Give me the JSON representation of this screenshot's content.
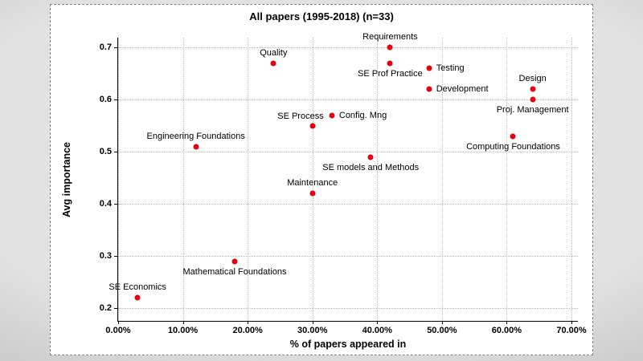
{
  "chart_data": {
    "type": "scatter",
    "title": "All papers (1995-2018) (n=33)",
    "xlabel": "% of papers appeared in",
    "ylabel": "Avg importance",
    "xlim": [
      0,
      0.7
    ],
    "ylim": [
      0.2,
      0.7
    ],
    "x_ticks": [
      0,
      0.1,
      0.2,
      0.3,
      0.4,
      0.5,
      0.6,
      0.7
    ],
    "x_tick_labels": [
      "0.00%",
      "10.00%",
      "20.00%",
      "30.00%",
      "40.00%",
      "50.00%",
      "60.00%",
      "70.00%"
    ],
    "y_ticks": [
      0.2,
      0.3,
      0.4,
      0.5,
      0.6,
      0.7
    ],
    "y_tick_labels": [
      "0.2",
      "0.3",
      "0.4",
      "0.5",
      "0.6",
      "0.7"
    ],
    "grid": "dotted",
    "legend": "none",
    "marker_color": "#e8000d",
    "points": [
      {
        "label": "SE Economics",
        "x": 0.03,
        "y": 0.22,
        "label_pos": "above"
      },
      {
        "label": "Mathematical Foundations",
        "x": 0.18,
        "y": 0.29,
        "label_pos": "below"
      },
      {
        "label": "Engineering Foundations",
        "x": 0.12,
        "y": 0.51,
        "label_pos": "above"
      },
      {
        "label": "Maintenance",
        "x": 0.3,
        "y": 0.42,
        "label_pos": "above"
      },
      {
        "label": "SE Process",
        "x": 0.3,
        "y": 0.55,
        "label_pos": "above-left"
      },
      {
        "label": "Config. Mng",
        "x": 0.33,
        "y": 0.57,
        "label_pos": "right"
      },
      {
        "label": "Quality",
        "x": 0.24,
        "y": 0.67,
        "label_pos": "above"
      },
      {
        "label": "SE models and Methods",
        "x": 0.39,
        "y": 0.49,
        "label_pos": "below"
      },
      {
        "label": "SE Prof Practice",
        "x": 0.42,
        "y": 0.67,
        "label_pos": "below"
      },
      {
        "label": "Requirements",
        "x": 0.42,
        "y": 0.7,
        "label_pos": "above"
      },
      {
        "label": "Testing",
        "x": 0.48,
        "y": 0.66,
        "label_pos": "right"
      },
      {
        "label": "Development",
        "x": 0.48,
        "y": 0.62,
        "label_pos": "right"
      },
      {
        "label": "Design",
        "x": 0.64,
        "y": 0.62,
        "label_pos": "above"
      },
      {
        "label": "Proj. Management",
        "x": 0.64,
        "y": 0.6,
        "label_pos": "below"
      },
      {
        "label": "Computing Foundations",
        "x": 0.61,
        "y": 0.53,
        "label_pos": "below"
      }
    ]
  }
}
